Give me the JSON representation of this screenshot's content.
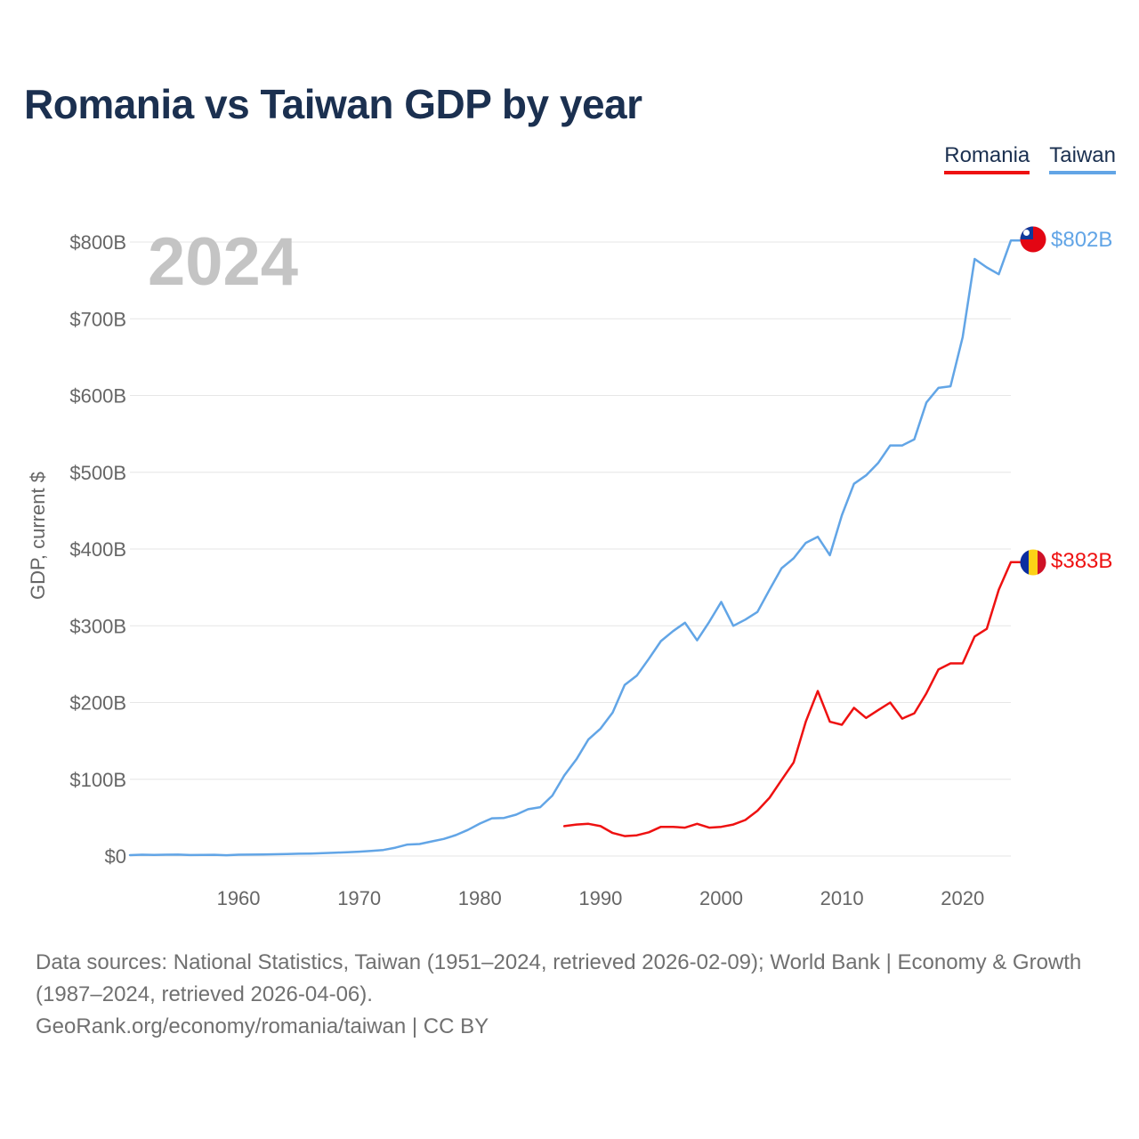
{
  "title": "Romania vs Taiwan GDP by year",
  "legend": {
    "romania": "Romania",
    "taiwan": "Taiwan"
  },
  "colors": {
    "romania": "#ee1111",
    "taiwan": "#62a5e6",
    "title": "#1b3050",
    "grid": "#e6e6e6",
    "tick": "#666666",
    "watermark": "#c4c4c4"
  },
  "year_watermark": "2024",
  "footer": {
    "sources": "Data sources: National Statistics, Taiwan (1951–2024, retrieved 2026-02-09); World Bank | Economy & Growth (1987–2024, retrieved 2026-04-06).",
    "credit": "GeoRank.org/economy/romania/taiwan | CC BY"
  },
  "chart_data": {
    "type": "line",
    "title": "Romania vs Taiwan GDP by year",
    "xlabel": "",
    "ylabel": "GDP, current $",
    "xlim": [
      1951,
      2024
    ],
    "ylim": [
      0,
      800
    ],
    "y_unit": "billions USD",
    "x_ticks": [
      1960,
      1970,
      1980,
      1990,
      2000,
      2010,
      2020
    ],
    "y_ticks": [
      0,
      100,
      200,
      300,
      400,
      500,
      600,
      700,
      800
    ],
    "y_tick_labels": [
      "$0",
      "$100B",
      "$200B",
      "$300B",
      "$400B",
      "$500B",
      "$600B",
      "$700B",
      "$800B"
    ],
    "grid": true,
    "legend_position": "top-right",
    "series": [
      {
        "name": "Romania",
        "color": "#ee1111",
        "end_label": "$383B",
        "flag": "romania-flag",
        "x": [
          1987,
          1988,
          1989,
          1990,
          1991,
          1992,
          1993,
          1994,
          1995,
          1996,
          1997,
          1998,
          1999,
          2000,
          2001,
          2002,
          2003,
          2004,
          2005,
          2006,
          2007,
          2008,
          2009,
          2010,
          2011,
          2012,
          2013,
          2014,
          2015,
          2016,
          2017,
          2018,
          2019,
          2020,
          2021,
          2022,
          2023,
          2024
        ],
        "values": [
          39,
          41,
          42,
          39,
          30,
          26,
          27,
          31,
          38,
          38,
          37,
          42,
          37,
          38,
          41,
          47,
          59,
          76,
          99,
          122,
          175,
          215,
          175,
          171,
          193,
          180,
          190,
          200,
          179,
          186,
          212,
          243,
          251,
          251,
          286,
          296,
          347,
          383
        ]
      },
      {
        "name": "Taiwan",
        "color": "#62a5e6",
        "end_label": "$802B",
        "flag": "taiwan-flag",
        "x": [
          1951,
          1952,
          1953,
          1954,
          1955,
          1956,
          1957,
          1958,
          1959,
          1960,
          1961,
          1962,
          1963,
          1964,
          1965,
          1966,
          1967,
          1968,
          1969,
          1970,
          1971,
          1972,
          1973,
          1974,
          1975,
          1976,
          1977,
          1978,
          1979,
          1980,
          1981,
          1982,
          1983,
          1984,
          1985,
          1986,
          1987,
          1988,
          1989,
          1990,
          1991,
          1992,
          1993,
          1994,
          1995,
          1996,
          1997,
          1998,
          1999,
          2000,
          2001,
          2002,
          2003,
          2004,
          2005,
          2006,
          2007,
          2008,
          2009,
          2010,
          2011,
          2012,
          2013,
          2014,
          2015,
          2016,
          2017,
          2018,
          2019,
          2020,
          2021,
          2022,
          2023,
          2024
        ],
        "values": [
          1.2,
          1.7,
          1.5,
          1.7,
          1.9,
          1.3,
          1.5,
          1.6,
          1.1,
          1.7,
          1.8,
          2.0,
          2.3,
          2.7,
          3.0,
          3.3,
          3.8,
          4.3,
          5.0,
          5.7,
          6.6,
          7.9,
          10.9,
          14.9,
          15.7,
          19.0,
          22.3,
          27.2,
          34.0,
          42.3,
          49.2,
          49.6,
          53.9,
          61.0,
          63.7,
          78.7,
          105,
          126,
          152,
          166,
          187,
          223,
          235,
          257,
          280,
          293,
          304,
          281,
          305,
          331,
          300,
          308,
          318,
          347,
          375,
          388,
          408,
          416,
          392,
          444,
          485,
          496,
          512,
          535,
          535,
          543,
          591,
          610,
          612,
          676,
          778,
          767,
          758,
          802
        ]
      }
    ]
  }
}
